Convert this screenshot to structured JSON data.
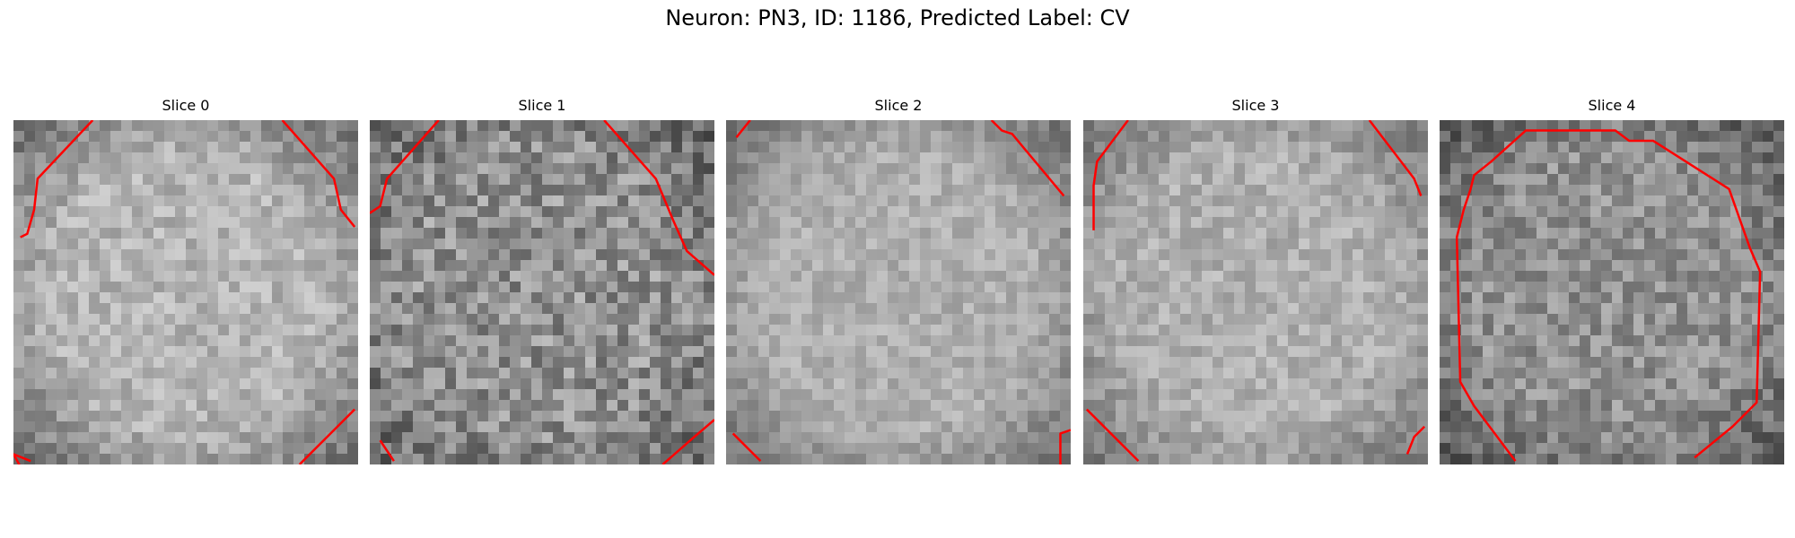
{
  "figure": {
    "title": "Neuron: PN3, ID: 1186, Predicted Label: CV"
  },
  "colors": {
    "contour": "#ff0000",
    "background": "#ffffff"
  },
  "panels": [
    {
      "title": "Slice 0",
      "seed": 11,
      "mean": 180,
      "noise": 28,
      "dark_edge": 0.55,
      "contours": [
        [
          [
            0.05,
            0.99
          ],
          [
            0.0,
            0.97
          ],
          [
            0.05,
            1.06
          ]
        ],
        [
          [
            0.23,
            0.0
          ],
          [
            0.07,
            0.17
          ],
          [
            0.06,
            0.26
          ],
          [
            0.04,
            0.33
          ],
          [
            0.02,
            0.34
          ]
        ],
        [
          [
            0.78,
            0.0
          ],
          [
            0.93,
            0.17
          ],
          [
            0.95,
            0.26
          ],
          [
            0.99,
            0.31
          ]
        ],
        [
          [
            0.83,
            1.0
          ],
          [
            0.86,
            0.97
          ],
          [
            0.99,
            0.84
          ]
        ]
      ]
    },
    {
      "title": "Slice 1",
      "seed": 23,
      "mean": 145,
      "noise": 45,
      "dark_edge": 0.35,
      "contours": [
        [
          [
            0.03,
            0.93
          ],
          [
            0.07,
            0.99
          ]
        ],
        [
          [
            0.2,
            0.0
          ],
          [
            0.05,
            0.17
          ],
          [
            0.03,
            0.25
          ],
          [
            0.0,
            0.27
          ]
        ],
        [
          [
            0.68,
            0.0
          ],
          [
            0.83,
            0.17
          ],
          [
            0.88,
            0.29
          ],
          [
            0.92,
            0.38
          ],
          [
            1.0,
            0.45
          ]
        ],
        [
          [
            0.85,
            1.0
          ],
          [
            0.93,
            0.93
          ],
          [
            1.0,
            0.87
          ]
        ]
      ]
    },
    {
      "title": "Slice 2",
      "seed": 37,
      "mean": 175,
      "noise": 22,
      "dark_edge": 0.5,
      "contours": [
        [
          [
            0.03,
            0.05
          ],
          [
            0.07,
            0.0
          ]
        ],
        [
          [
            0.77,
            0.0
          ],
          [
            0.8,
            0.03
          ],
          [
            0.83,
            0.04
          ],
          [
            0.98,
            0.22
          ]
        ],
        [
          [
            0.02,
            0.91
          ],
          [
            0.1,
            0.99
          ]
        ],
        [
          [
            0.97,
            1.0
          ],
          [
            0.97,
            0.91
          ],
          [
            1.0,
            0.9
          ]
        ]
      ]
    },
    {
      "title": "Slice 3",
      "seed": 51,
      "mean": 175,
      "noise": 25,
      "dark_edge": 0.45,
      "contours": [
        [
          [
            0.13,
            0.0
          ],
          [
            0.04,
            0.12
          ],
          [
            0.03,
            0.19
          ],
          [
            0.03,
            0.32
          ]
        ],
        [
          [
            0.83,
            0.0
          ],
          [
            0.96,
            0.17
          ],
          [
            0.98,
            0.22
          ]
        ],
        [
          [
            0.01,
            0.84
          ],
          [
            0.16,
            0.99
          ]
        ],
        [
          [
            0.94,
            0.97
          ],
          [
            0.96,
            0.92
          ],
          [
            0.99,
            0.89
          ]
        ]
      ]
    },
    {
      "title": "Slice 4",
      "seed": 67,
      "mean": 145,
      "noise": 35,
      "dark_edge": 0.45,
      "contours": [
        [
          [
            0.22,
            0.99
          ],
          [
            0.1,
            0.83
          ],
          [
            0.06,
            0.76
          ],
          [
            0.05,
            0.34
          ],
          [
            0.07,
            0.26
          ],
          [
            0.09,
            0.2
          ],
          [
            0.1,
            0.16
          ],
          [
            0.15,
            0.12
          ],
          [
            0.25,
            0.03
          ],
          [
            0.51,
            0.03
          ],
          [
            0.55,
            0.06
          ],
          [
            0.62,
            0.06
          ],
          [
            0.84,
            0.2
          ],
          [
            0.9,
            0.37
          ],
          [
            0.93,
            0.44
          ],
          [
            0.92,
            0.82
          ],
          [
            0.85,
            0.89
          ],
          [
            0.74,
            0.98
          ]
        ]
      ]
    }
  ]
}
